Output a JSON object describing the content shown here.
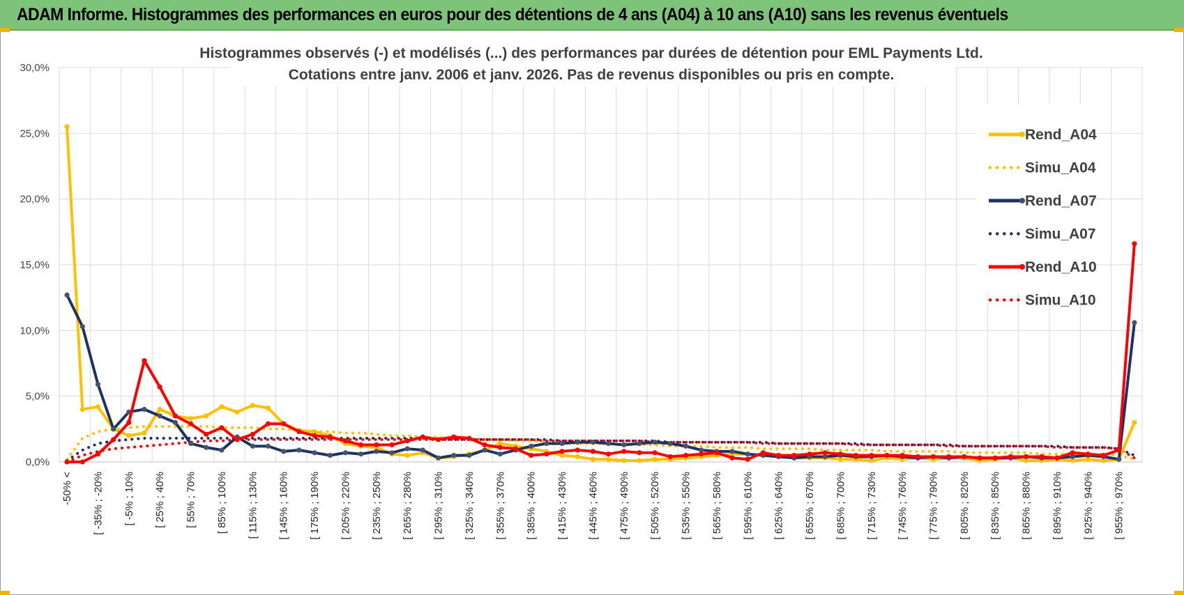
{
  "header": {
    "title": "ADAM Informe. Histogrammes des performances en euros pour des détentions de 4 ans (A04) à 10 ans (A10) sans les revenus éventuels",
    "background": "#7dc47a"
  },
  "chart_data": {
    "type": "line",
    "title": "Histogrammes observés (-) et modélisés (...) des performances par durées de détention pour EML Payments Ltd.",
    "subtitle": "Cotations entre janv. 2006 et janv. 2026. Pas de revenus disponibles ou pris en compte.",
    "xlabel": "",
    "ylabel": "",
    "ylim": [
      0,
      30
    ],
    "y_ticks": [
      "0,0%",
      "5,0%",
      "10,0%",
      "15,0%",
      "20,0%",
      "25,0%",
      "30,0%"
    ],
    "grid": true,
    "legend_position": "right",
    "x_tick_labels": [
      "-50% <",
      "[ -35% ; -20%",
      "[ -5% ; 10%",
      "[ 25% ; 40%",
      "[ 55% ; 70%",
      "[ 85% ; 100%",
      "[ 115% ; 130%",
      "[ 145% ; 160%",
      "[ 175% ; 190%",
      "[ 205% ; 220%",
      "[ 235% ; 250%",
      "[ 265% ; 280%",
      "[ 295% ; 310%",
      "[ 325% ; 340%",
      "[ 355% ; 370%",
      "[ 385% ; 400%",
      "[ 415% ; 430%",
      "[ 445% ; 460%",
      "[ 475% ; 490%",
      "[ 505% ; 520%",
      "[ 535% ; 550%",
      "[ 565% ; 580%",
      "[ 595% ; 610%",
      "[ 625% ; 640%",
      "[ 655% ; 670%",
      "[ 685% ; 700%",
      "[ 715% ; 730%",
      "[ 745% ; 760%",
      "[ 775% ; 790%",
      "[ 805% ; 820%",
      "[ 835% ; 850%",
      "[ 865% ; 880%",
      "[ 895% ; 910%",
      "[ 925% ; 940%",
      "[ 955% ; 970%"
    ],
    "num_points": 70,
    "series": [
      {
        "name": "Rend_A04",
        "style": "solid",
        "color": "#ffc000",
        "values": [
          25.5,
          4.0,
          4.2,
          2.5,
          2.0,
          2.2,
          4.0,
          3.5,
          3.3,
          3.5,
          4.2,
          3.8,
          4.3,
          4.1,
          2.9,
          2.4,
          2.3,
          2.0,
          1.4,
          1.2,
          1.1,
          0.6,
          0.5,
          0.7,
          0.3,
          0.4,
          0.6,
          0.9,
          1.4,
          1.2,
          1.0,
          0.8,
          0.5,
          0.4,
          0.2,
          0.2,
          0.1,
          0.1,
          0.2,
          0.2,
          0.3,
          0.4,
          0.5,
          0.6,
          0.6,
          0.5,
          0.4,
          0.3,
          0.3,
          0.3,
          0.2,
          0.2,
          0.1,
          0.3,
          0.2,
          0.3,
          0.2,
          0.3,
          0.3,
          0.1,
          0.2,
          0.3,
          0.1,
          0.1,
          0.2,
          0.1,
          0.2,
          0.1,
          0.2,
          3.0
        ]
      },
      {
        "name": "Simu_A04",
        "style": "dotted",
        "color": "#ffc000",
        "values": [
          0.2,
          1.8,
          2.3,
          2.5,
          2.6,
          2.7,
          2.7,
          2.7,
          2.7,
          2.7,
          2.6,
          2.6,
          2.6,
          2.5,
          2.5,
          2.4,
          2.3,
          2.3,
          2.2,
          2.2,
          2.1,
          2.0,
          2.0,
          1.9,
          1.9,
          1.8,
          1.8,
          1.7,
          1.7,
          1.6,
          1.6,
          1.5,
          1.5,
          1.4,
          1.4,
          1.4,
          1.3,
          1.3,
          1.3,
          1.2,
          1.2,
          1.2,
          1.1,
          1.1,
          1.1,
          1.0,
          1.0,
          1.0,
          1.0,
          0.9,
          0.9,
          0.9,
          0.9,
          0.8,
          0.8,
          0.8,
          0.8,
          0.8,
          0.7,
          0.7,
          0.7,
          0.7,
          0.7,
          0.6,
          0.6,
          0.6,
          0.6,
          0.6,
          0.5,
          0.2
        ]
      },
      {
        "name": "Rend_A07",
        "style": "solid",
        "color": "#1f3264",
        "values": [
          12.7,
          10.3,
          5.9,
          2.5,
          3.8,
          4.0,
          3.5,
          3.0,
          1.4,
          1.1,
          0.9,
          1.9,
          1.2,
          1.2,
          0.8,
          0.9,
          0.7,
          0.5,
          0.7,
          0.6,
          0.8,
          0.7,
          1.0,
          0.9,
          0.3,
          0.5,
          0.5,
          0.9,
          0.6,
          0.9,
          1.2,
          1.4,
          1.4,
          1.5,
          1.5,
          1.4,
          1.3,
          1.4,
          1.5,
          1.4,
          1.2,
          0.9,
          0.8,
          0.8,
          0.6,
          0.5,
          0.4,
          0.3,
          0.4,
          0.4,
          0.5,
          0.4,
          0.4,
          0.5,
          0.4,
          0.3,
          0.4,
          0.3,
          0.4,
          0.3,
          0.3,
          0.3,
          0.4,
          0.3,
          0.3,
          0.4,
          0.5,
          0.4,
          0.2,
          10.6
        ]
      },
      {
        "name": "Simu_A07",
        "style": "dotted",
        "color": "#1f3264",
        "values": [
          0.1,
          0.9,
          1.4,
          1.6,
          1.7,
          1.8,
          1.8,
          1.8,
          1.8,
          1.8,
          1.8,
          1.8,
          1.8,
          1.8,
          1.8,
          1.8,
          1.8,
          1.8,
          1.8,
          1.8,
          1.8,
          1.8,
          1.8,
          1.8,
          1.7,
          1.7,
          1.7,
          1.7,
          1.7,
          1.7,
          1.7,
          1.7,
          1.6,
          1.6,
          1.6,
          1.6,
          1.6,
          1.6,
          1.6,
          1.5,
          1.5,
          1.5,
          1.5,
          1.5,
          1.5,
          1.5,
          1.4,
          1.4,
          1.4,
          1.4,
          1.4,
          1.4,
          1.3,
          1.3,
          1.3,
          1.3,
          1.3,
          1.3,
          1.2,
          1.2,
          1.2,
          1.2,
          1.2,
          1.2,
          1.2,
          1.1,
          1.1,
          1.1,
          1.0,
          0.5
        ]
      },
      {
        "name": "Rend_A10",
        "style": "solid",
        "color": "#ff0000",
        "values": [
          0.0,
          0.0,
          0.6,
          1.7,
          3.0,
          7.7,
          5.7,
          3.5,
          2.9,
          2.1,
          2.6,
          1.7,
          2.1,
          2.9,
          2.9,
          2.3,
          2.0,
          1.9,
          1.6,
          1.3,
          1.3,
          1.3,
          1.6,
          1.9,
          1.7,
          1.9,
          1.8,
          1.3,
          1.1,
          1.0,
          0.5,
          0.6,
          0.8,
          0.9,
          0.8,
          0.6,
          0.8,
          0.7,
          0.7,
          0.4,
          0.5,
          0.6,
          0.7,
          0.3,
          0.2,
          0.7,
          0.5,
          0.5,
          0.6,
          0.7,
          0.6,
          0.5,
          0.5,
          0.5,
          0.5,
          0.4,
          0.4,
          0.4,
          0.4,
          0.3,
          0.3,
          0.4,
          0.4,
          0.4,
          0.3,
          0.7,
          0.6,
          0.5,
          0.9,
          16.6
        ]
      },
      {
        "name": "Simu_A10",
        "style": "dotted",
        "color": "#ff0000",
        "values": [
          0.0,
          0.5,
          0.8,
          1.0,
          1.1,
          1.2,
          1.3,
          1.4,
          1.5,
          1.6,
          1.6,
          1.7,
          1.7,
          1.7,
          1.7,
          1.7,
          1.7,
          1.7,
          1.7,
          1.7,
          1.7,
          1.7,
          1.7,
          1.7,
          1.7,
          1.7,
          1.7,
          1.7,
          1.7,
          1.7,
          1.7,
          1.6,
          1.6,
          1.6,
          1.6,
          1.6,
          1.6,
          1.6,
          1.5,
          1.5,
          1.5,
          1.5,
          1.5,
          1.5,
          1.5,
          1.4,
          1.4,
          1.4,
          1.4,
          1.4,
          1.4,
          1.3,
          1.3,
          1.3,
          1.3,
          1.3,
          1.3,
          1.2,
          1.2,
          1.2,
          1.2,
          1.2,
          1.2,
          1.2,
          1.1,
          1.1,
          1.1,
          1.1,
          1.0,
          0.3
        ]
      }
    ]
  }
}
